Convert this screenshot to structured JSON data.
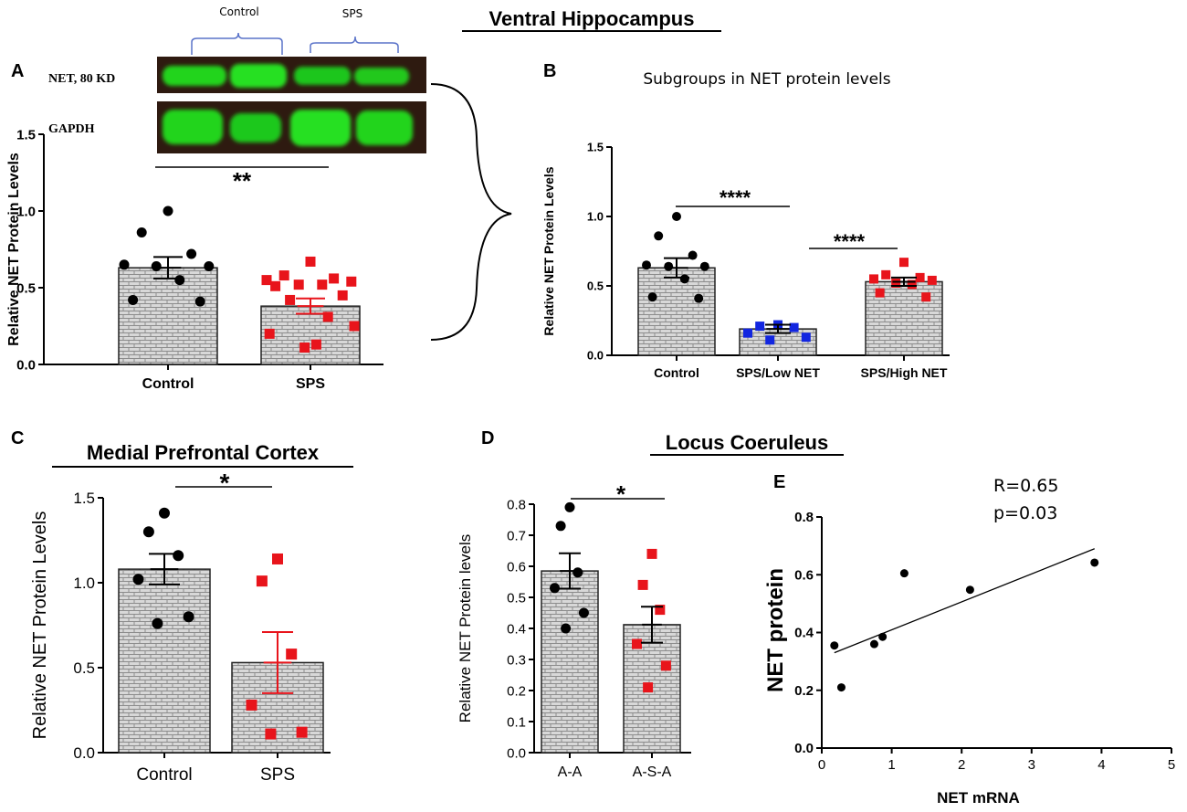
{
  "colors": {
    "bar_fill": "#d8d8d8",
    "brick_line": "#8c8c8c",
    "control_dot": "#000000",
    "sps_square": "#e8141b",
    "low_net_square": "#1226e0",
    "blot_band": "#22d41c",
    "blot_bg": "#2e1a10"
  },
  "headings": {
    "ventral_hippocampus": "Ventral Hippocampus",
    "locus_coeruleus": "Locus Coeruleus"
  },
  "blot": {
    "group_labels": [
      "Control",
      "SPS"
    ],
    "net_label": "NET, 80 KD",
    "gapdh_label": "GAPDH"
  },
  "chart_data": [
    {
      "panel": "A",
      "type": "bar",
      "title": "",
      "ylabel": "Relative NET Protein Levels",
      "categories": [
        "Control",
        "SPS"
      ],
      "values": [
        0.63,
        0.38
      ],
      "sem": [
        0.07,
        0.05
      ],
      "ylim": [
        0,
        1.5
      ],
      "yticks": [
        "0.0",
        "0.5",
        "1.0",
        "1.5"
      ],
      "points": [
        [
          1.0,
          0.86,
          0.72,
          0.65,
          0.64,
          0.64,
          0.55,
          0.42,
          0.41
        ],
        [
          0.67,
          0.58,
          0.56,
          0.55,
          0.54,
          0.52,
          0.52,
          0.51,
          0.45,
          0.42,
          0.31,
          0.25,
          0.2,
          0.13,
          0.11
        ]
      ],
      "significance": "**"
    },
    {
      "panel": "B",
      "type": "bar",
      "title": "Subgroups in NET protein levels",
      "ylabel": "Relative NET Protein Levels",
      "categories": [
        "Control",
        "SPS/Low NET",
        "SPS/High NET"
      ],
      "values": [
        0.63,
        0.19,
        0.53
      ],
      "sem": [
        0.07,
        0.03,
        0.03
      ],
      "ylim": [
        0,
        1.5
      ],
      "yticks": [
        "0.0",
        "0.5",
        "1.0",
        "1.5"
      ],
      "points": [
        [
          1.0,
          0.86,
          0.72,
          0.65,
          0.64,
          0.64,
          0.55,
          0.42,
          0.41
        ],
        [
          0.22,
          0.21,
          0.2,
          0.16,
          0.13,
          0.11
        ],
        [
          0.67,
          0.58,
          0.56,
          0.55,
          0.54,
          0.52,
          0.51,
          0.45,
          0.42
        ]
      ],
      "significance": [
        "****",
        "****"
      ]
    },
    {
      "panel": "C",
      "type": "bar",
      "title": "Medial Prefrontal Cortex",
      "ylabel": "Relative NET Protein Levels",
      "categories": [
        "Control",
        "SPS"
      ],
      "values": [
        1.08,
        0.53
      ],
      "sem": [
        0.09,
        0.18
      ],
      "ylim": [
        0,
        1.5
      ],
      "yticks": [
        "0.0",
        "0.5",
        "1.0",
        "1.5"
      ],
      "points": [
        [
          1.41,
          1.3,
          1.16,
          1.02,
          0.8,
          0.76
        ],
        [
          1.14,
          1.01,
          0.58,
          0.28,
          0.12,
          0.11
        ]
      ],
      "significance": "*"
    },
    {
      "panel": "D",
      "type": "bar",
      "title": "",
      "ylabel": "Relative NET Protein levels",
      "categories": [
        "A-A",
        "A-S-A"
      ],
      "values": [
        0.585,
        0.412
      ],
      "sem": [
        0.057,
        0.058
      ],
      "ylim": [
        0,
        0.8
      ],
      "yticks": [
        "0.0",
        "0.1",
        "0.2",
        "0.3",
        "0.4",
        "0.5",
        "0.6",
        "0.7",
        "0.8"
      ],
      "points": [
        [
          0.79,
          0.73,
          0.58,
          0.53,
          0.45,
          0.4
        ],
        [
          0.64,
          0.54,
          0.46,
          0.35,
          0.28,
          0.21
        ]
      ],
      "significance": "*"
    },
    {
      "panel": "E",
      "type": "scatter",
      "title": "",
      "xlabel": "NET mRNA",
      "ylabel": "NET protein",
      "x": [
        0.18,
        0.28,
        0.75,
        0.87,
        1.18,
        2.12,
        3.9
      ],
      "y": [
        0.355,
        0.21,
        0.36,
        0.385,
        0.605,
        0.548,
        0.642
      ],
      "fit": [
        [
          0.18,
          0.33
        ],
        [
          3.9,
          0.69
        ]
      ],
      "xlim": [
        0,
        5
      ],
      "ylim": [
        0,
        0.8
      ],
      "xticks": [
        "0",
        "1",
        "2",
        "3",
        "4",
        "5"
      ],
      "yticks": [
        "0.0",
        "0.2",
        "0.4",
        "0.6",
        "0.8"
      ],
      "stats": [
        "R=0.65",
        "p=0.03"
      ]
    }
  ]
}
